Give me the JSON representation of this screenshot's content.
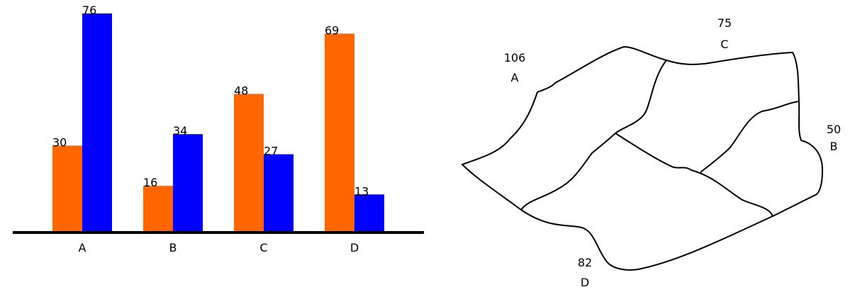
{
  "chart_data": [
    {
      "type": "bar",
      "categories": [
        "A",
        "B",
        "C",
        "D"
      ],
      "series": [
        {
          "values": [
            30,
            16,
            48,
            69
          ],
          "color": "#ff6600"
        },
        {
          "values": [
            76,
            34,
            27,
            13
          ],
          "color": "#0000ff"
        }
      ],
      "ylim": [
        0,
        76
      ],
      "grid": false,
      "legend": "none"
    },
    {
      "type": "map",
      "regions": [
        {
          "name": "A",
          "value": 106
        },
        {
          "name": "C",
          "value": 75
        },
        {
          "name": "B",
          "value": 50
        },
        {
          "name": "D",
          "value": 82
        }
      ]
    }
  ]
}
